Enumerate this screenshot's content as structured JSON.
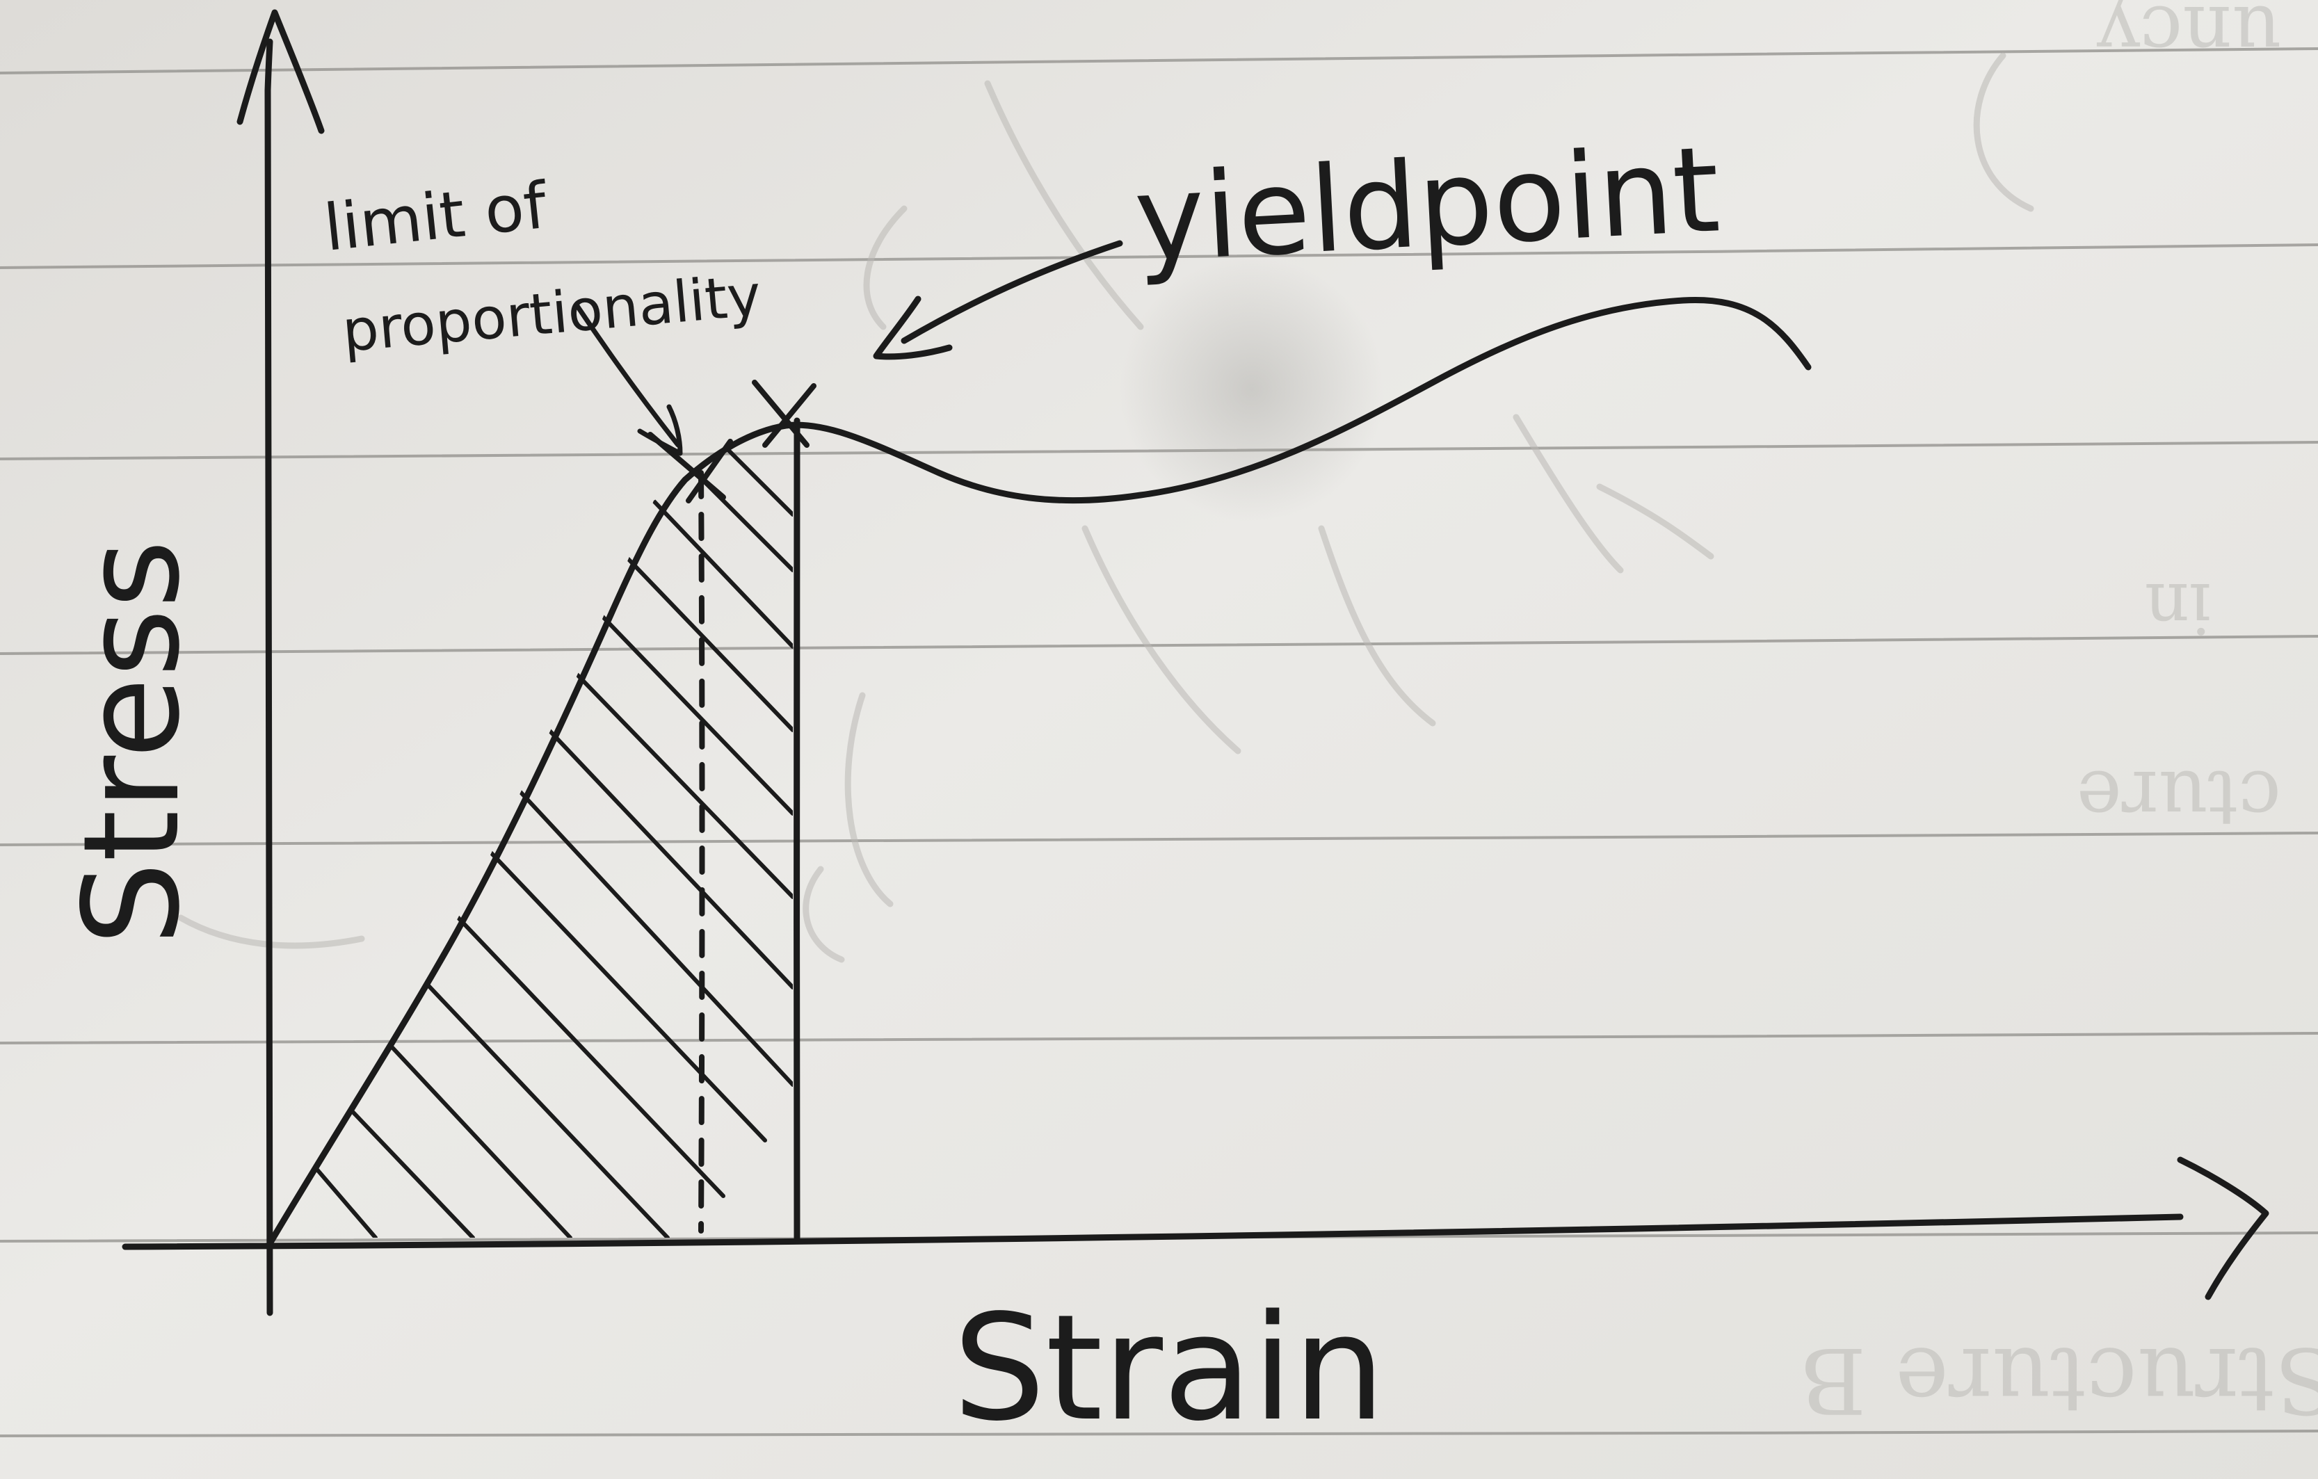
{
  "diagram": {
    "axes": {
      "y_label": "Stress",
      "x_label": "Strain"
    },
    "annotations": {
      "limit_of_proportionality": {
        "line1": "limit of",
        "line2": "proportionality"
      },
      "yield_point": "yieldpoint"
    },
    "colors": {
      "ink": "#1b1b1b",
      "paper": "#e7e6e3",
      "rule_line": "#8f8e8a",
      "bleed_through": "#b9b8b4"
    }
  }
}
